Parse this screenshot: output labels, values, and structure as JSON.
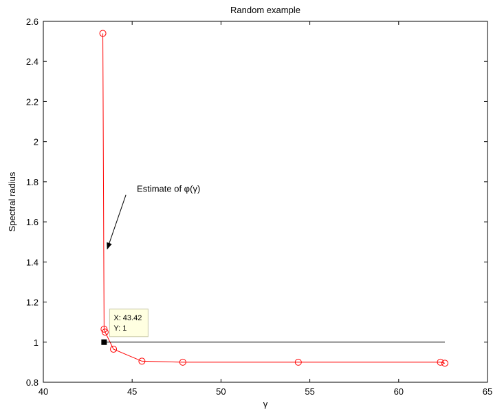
{
  "chart_data": {
    "type": "line",
    "title": "Random example",
    "xlabel": "γ",
    "ylabel": "Spectral radius",
    "xlim": [
      40,
      65
    ],
    "ylim": [
      0.8,
      2.6
    ],
    "xticks": [
      40,
      45,
      50,
      55,
      60,
      65
    ],
    "yticks": [
      0.8,
      1,
      1.2,
      1.4,
      1.6,
      1.8,
      2,
      2.2,
      2.4,
      2.6
    ],
    "ytick_labels": [
      "0.8",
      "1",
      "1.2",
      "1.4",
      "1.6",
      "1.8",
      "2",
      "2.2",
      "2.4",
      "2.6"
    ],
    "grid": false,
    "legend": "none",
    "series": [
      {
        "color": "#ff0000",
        "marker": "circle",
        "x": [
          43.35,
          43.42,
          43.48,
          43.95,
          45.55,
          47.85,
          54.35,
          62.35,
          62.6
        ],
        "y": [
          2.54,
          1.065,
          1.05,
          0.965,
          0.905,
          0.9,
          0.9,
          0.9,
          0.895
        ]
      }
    ],
    "reference_line": {
      "color": "#000000",
      "x": [
        43.42,
        62.6
      ],
      "y": [
        1,
        1
      ]
    },
    "datatip": {
      "x": 43.42,
      "y": 1,
      "lines": [
        "X: 43.42",
        "Y: 1"
      ]
    },
    "annotation": {
      "text": "Estimate of φ(γ)",
      "text_at": [
        47.05,
        1.75
      ],
      "arrow_from": [
        44.65,
        1.735
      ],
      "arrow_to": [
        43.6,
        1.465
      ]
    }
  }
}
